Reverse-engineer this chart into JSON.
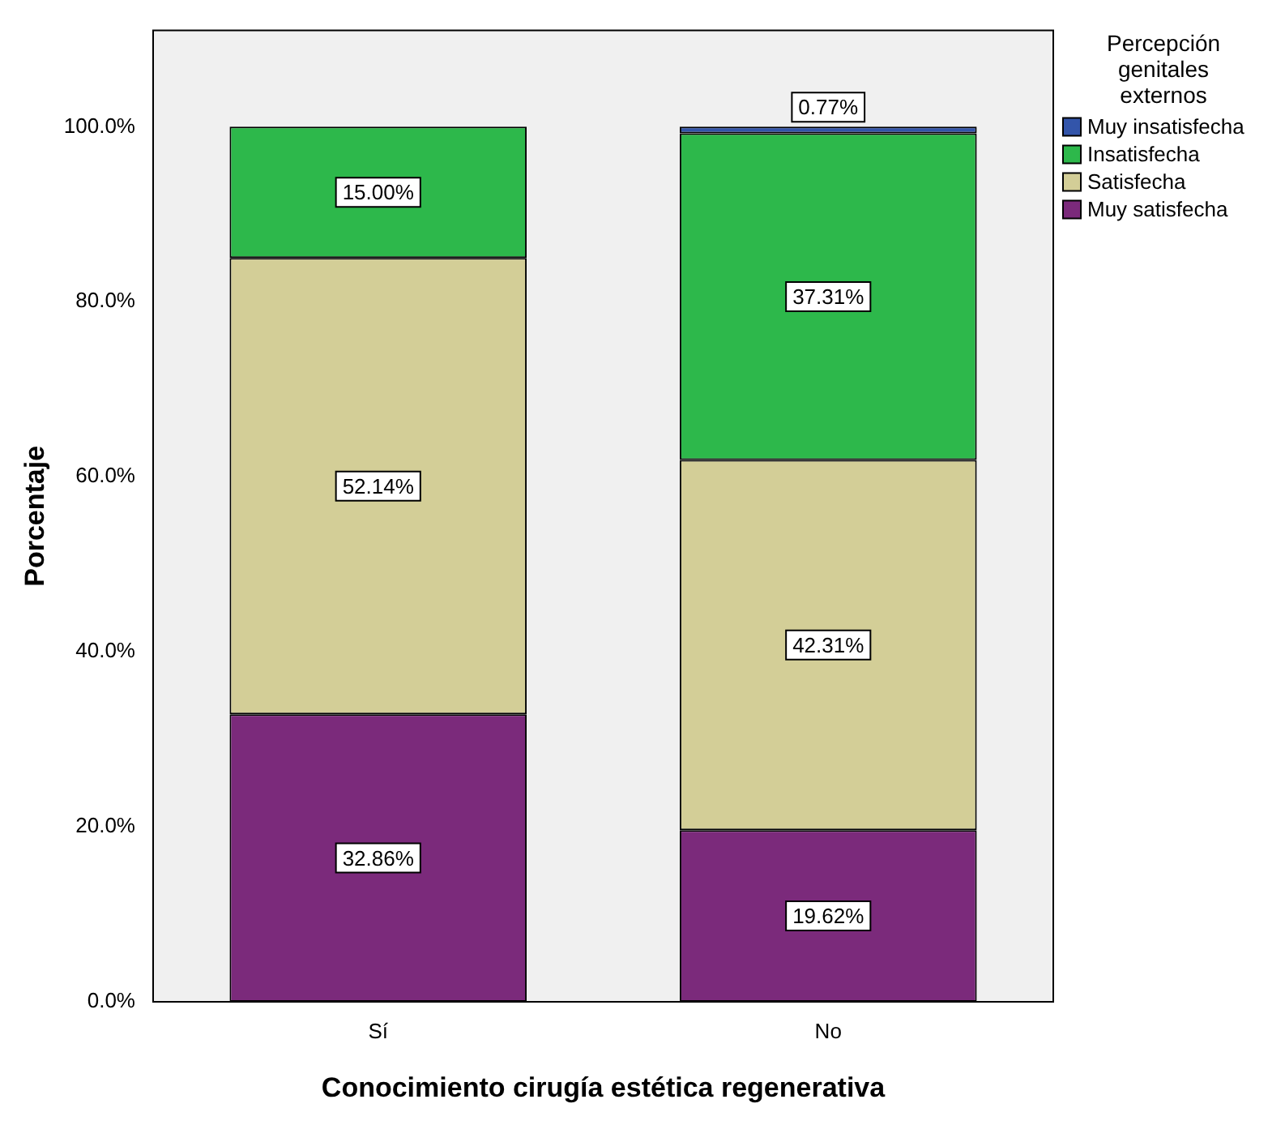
{
  "chart_data": {
    "type": "bar",
    "stacked": true,
    "xlabel": "Conocimiento cirugía estética regenerativa",
    "ylabel": "Porcentaje",
    "legend_title": "Percepción genitales externos",
    "legend": "right",
    "grid": false,
    "categories": [
      "Sí",
      "No"
    ],
    "series": [
      {
        "name": "Muy satisfecha",
        "color": "#7b2a7b",
        "values": [
          32.86,
          19.62
        ],
        "value_labels": [
          "32.86%",
          "19.62%"
        ]
      },
      {
        "name": "Satisfecha",
        "color": "#d3ce97",
        "values": [
          52.14,
          42.31
        ],
        "value_labels": [
          "52.14%",
          "42.31%"
        ]
      },
      {
        "name": "Insatisfecha",
        "color": "#2db84b",
        "values": [
          15.0,
          37.31
        ],
        "value_labels": [
          "15.00%",
          "37.31%"
        ]
      },
      {
        "name": "Muy insatisfecha",
        "color": "#3355aa",
        "values": [
          null,
          0.77
        ],
        "value_labels": [
          null,
          "0.77%"
        ]
      }
    ],
    "ylim": [
      0,
      111
    ],
    "yticks": [
      {
        "value": 0,
        "label": "0.0%"
      },
      {
        "value": 20,
        "label": "20.0%"
      },
      {
        "value": 40,
        "label": "40.0%"
      },
      {
        "value": 60,
        "label": "60.0%"
      },
      {
        "value": 80,
        "label": "80.0%"
      },
      {
        "value": 100,
        "label": "100.0%"
      }
    ]
  }
}
